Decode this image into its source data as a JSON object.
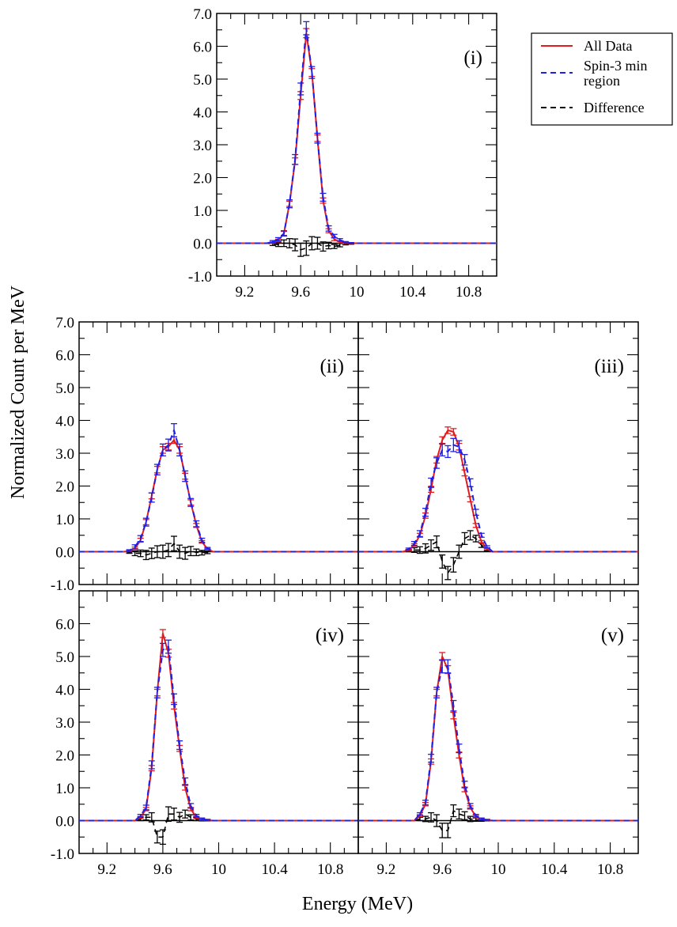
{
  "figure": {
    "xlabel": "Energy (MeV)",
    "ylabel": "Normalized Count per MeV"
  },
  "legend": {
    "placement": "top-right",
    "entries": [
      {
        "label_lines": [
          "All Data"
        ],
        "color": "#e41a1c",
        "dash": "solid"
      },
      {
        "label_lines": [
          "Spin-3 min",
          "region"
        ],
        "color": "#1f1fe6",
        "dash": "dashed"
      },
      {
        "label_lines": [
          "Difference"
        ],
        "color": "#000000",
        "dash": "dashed"
      }
    ]
  },
  "chart_data": [
    {
      "type": "line",
      "panel": "(i)",
      "xlim": [
        9.0,
        11.0
      ],
      "ylim": [
        -1.0,
        7.0
      ],
      "xticks": [
        "9.2",
        "9.6",
        "10",
        "10.4",
        "10.8"
      ],
      "yticks": [
        "-1.0",
        "0.0",
        "1.0",
        "2.0",
        "3.0",
        "4.0",
        "5.0",
        "6.0",
        "7.0"
      ],
      "x": [
        9.4,
        9.44,
        9.48,
        9.52,
        9.56,
        9.6,
        9.64,
        9.68,
        9.72,
        9.76,
        9.8,
        9.84,
        9.88,
        9.92,
        9.96
      ],
      "series": [
        {
          "name": "All Data",
          "values": [
            0.02,
            0.08,
            0.3,
            1.2,
            2.5,
            4.5,
            6.4,
            5.2,
            3.2,
            1.3,
            0.38,
            0.12,
            0.04,
            0.01,
            0.0
          ],
          "errors": [
            0.02,
            0.04,
            0.06,
            0.08,
            0.1,
            0.12,
            0.14,
            0.12,
            0.1,
            0.08,
            0.06,
            0.04,
            0.03,
            0.02,
            0.01
          ]
        },
        {
          "name": "Spin-3 min region",
          "values": [
            0.05,
            0.12,
            0.3,
            1.2,
            2.55,
            4.7,
            6.55,
            5.2,
            3.2,
            1.4,
            0.45,
            0.22,
            0.1,
            0.03,
            0.01
          ],
          "errors": [
            0.03,
            0.05,
            0.08,
            0.12,
            0.15,
            0.18,
            0.2,
            0.18,
            0.15,
            0.12,
            0.08,
            0.05,
            0.04,
            0.02,
            0.01
          ]
        },
        {
          "name": "Difference",
          "values": [
            -0.03,
            -0.04,
            0.0,
            0.0,
            -0.05,
            -0.2,
            -0.15,
            0.0,
            0.0,
            -0.1,
            -0.07,
            -0.1,
            -0.06,
            -0.02,
            -0.01
          ],
          "errors": [
            0.04,
            0.06,
            0.1,
            0.14,
            0.18,
            0.2,
            0.22,
            0.2,
            0.18,
            0.14,
            0.1,
            0.06,
            0.05,
            0.03,
            0.02
          ]
        }
      ]
    },
    {
      "type": "line",
      "panel": "(ii)",
      "xlim": [
        9.0,
        11.0
      ],
      "ylim": [
        -1.0,
        7.0
      ],
      "xticks": [],
      "yticks": [
        "-1.0",
        "0.0",
        "1.0",
        "2.0",
        "3.0",
        "4.0",
        "5.0",
        "6.0",
        "7.0"
      ],
      "x": [
        9.36,
        9.4,
        9.44,
        9.48,
        9.52,
        9.56,
        9.6,
        9.64,
        9.68,
        9.72,
        9.76,
        9.8,
        9.84,
        9.88,
        9.92
      ],
      "series": [
        {
          "name": "All Data",
          "values": [
            0.02,
            0.1,
            0.35,
            0.9,
            1.7,
            2.5,
            3.1,
            3.2,
            3.4,
            3.1,
            2.3,
            1.5,
            0.8,
            0.3,
            0.08
          ],
          "errors": [
            0.02,
            0.04,
            0.06,
            0.08,
            0.09,
            0.1,
            0.1,
            0.1,
            0.1,
            0.1,
            0.09,
            0.08,
            0.06,
            0.04,
            0.02
          ]
        },
        {
          "name": "Spin-3 min region",
          "values": [
            0.03,
            0.15,
            0.4,
            0.9,
            1.65,
            2.5,
            3.1,
            3.25,
            3.7,
            3.1,
            2.3,
            1.5,
            0.85,
            0.35,
            0.1
          ],
          "errors": [
            0.03,
            0.06,
            0.09,
            0.12,
            0.14,
            0.16,
            0.18,
            0.18,
            0.2,
            0.18,
            0.16,
            0.12,
            0.09,
            0.06,
            0.03
          ]
        },
        {
          "name": "Difference",
          "values": [
            -0.02,
            -0.05,
            -0.05,
            -0.1,
            -0.05,
            0.0,
            0.0,
            0.05,
            0.25,
            0.0,
            -0.05,
            0.02,
            -0.02,
            -0.03,
            -0.02
          ],
          "errors": [
            0.03,
            0.07,
            0.1,
            0.14,
            0.16,
            0.18,
            0.2,
            0.2,
            0.22,
            0.2,
            0.18,
            0.14,
            0.1,
            0.07,
            0.04
          ]
        }
      ]
    },
    {
      "type": "line",
      "panel": "(iii)",
      "xlim": [
        9.0,
        11.0
      ],
      "ylim": [
        -1.0,
        7.0
      ],
      "xticks": [],
      "yticks": [],
      "x": [
        9.36,
        9.4,
        9.44,
        9.48,
        9.52,
        9.56,
        9.6,
        9.64,
        9.68,
        9.72,
        9.76,
        9.8,
        9.84,
        9.88,
        9.92
      ],
      "series": [
        {
          "name": "All Data",
          "values": [
            0.05,
            0.2,
            0.5,
            1.1,
            1.9,
            2.8,
            3.4,
            3.7,
            3.65,
            3.2,
            2.4,
            1.6,
            0.8,
            0.3,
            0.08
          ],
          "errors": [
            0.02,
            0.04,
            0.06,
            0.08,
            0.09,
            0.1,
            0.1,
            0.1,
            0.1,
            0.1,
            0.09,
            0.08,
            0.06,
            0.04,
            0.02
          ]
        },
        {
          "name": "Spin-3 min region",
          "values": [
            0.08,
            0.25,
            0.55,
            1.2,
            2.1,
            2.7,
            3.1,
            3.05,
            3.25,
            3.2,
            2.8,
            2.1,
            1.2,
            0.5,
            0.15
          ],
          "errors": [
            0.03,
            0.06,
            0.09,
            0.12,
            0.14,
            0.16,
            0.18,
            0.18,
            0.2,
            0.18,
            0.16,
            0.12,
            0.09,
            0.06,
            0.03
          ]
        },
        {
          "name": "Difference",
          "values": [
            0.03,
            0.05,
            0.05,
            0.1,
            0.2,
            0.3,
            -0.3,
            -0.65,
            -0.4,
            0.0,
            0.4,
            0.5,
            0.4,
            0.2,
            0.07
          ],
          "errors": [
            0.03,
            0.07,
            0.1,
            0.14,
            0.16,
            0.18,
            0.2,
            0.2,
            0.22,
            0.2,
            0.18,
            0.14,
            0.1,
            0.07,
            0.04
          ]
        }
      ]
    },
    {
      "type": "line",
      "panel": "(iv)",
      "xlim": [
        9.0,
        11.0
      ],
      "ylim": [
        -1.0,
        7.0
      ],
      "xticks": [
        "9.2",
        "9.6",
        "10",
        "10.4",
        "10.8"
      ],
      "yticks": [
        "-1.0",
        "0.0",
        "1.0",
        "2.0",
        "3.0",
        "4.0",
        "5.0",
        "6.0"
      ],
      "x": [
        9.44,
        9.48,
        9.52,
        9.56,
        9.6,
        9.64,
        9.68,
        9.72,
        9.76,
        9.8,
        9.84,
        9.88,
        9.92
      ],
      "series": [
        {
          "name": "All Data",
          "values": [
            0.1,
            0.35,
            1.6,
            3.9,
            5.7,
            5.1,
            3.5,
            2.2,
            1.0,
            0.35,
            0.1,
            0.03,
            0.01
          ],
          "errors": [
            0.03,
            0.05,
            0.08,
            0.1,
            0.12,
            0.12,
            0.1,
            0.09,
            0.07,
            0.05,
            0.03,
            0.02,
            0.01
          ]
        },
        {
          "name": "Spin-3 min region",
          "values": [
            0.15,
            0.4,
            1.7,
            3.9,
            5.2,
            5.3,
            3.7,
            2.3,
            1.2,
            0.45,
            0.15,
            0.05,
            0.02
          ],
          "errors": [
            0.04,
            0.07,
            0.12,
            0.16,
            0.2,
            0.2,
            0.16,
            0.13,
            0.1,
            0.07,
            0.04,
            0.03,
            0.02
          ]
        },
        {
          "name": "Difference",
          "values": [
            0.05,
            0.1,
            0.1,
            -0.5,
            -0.5,
            0.2,
            0.2,
            0.1,
            0.2,
            0.1,
            0.05,
            0.02,
            0.01
          ],
          "errors": [
            0.05,
            0.08,
            0.14,
            0.18,
            0.22,
            0.22,
            0.18,
            0.15,
            0.12,
            0.08,
            0.05,
            0.03,
            0.02
          ]
        }
      ]
    },
    {
      "type": "line",
      "panel": "(v)",
      "xlim": [
        9.0,
        11.0
      ],
      "ylim": [
        -1.0,
        7.0
      ],
      "xticks": [
        "9.2",
        "9.6",
        "10",
        "10.4",
        "10.8"
      ],
      "yticks": [],
      "x": [
        9.44,
        9.48,
        9.52,
        9.56,
        9.6,
        9.64,
        9.68,
        9.72,
        9.76,
        9.8,
        9.84,
        9.88,
        9.92
      ],
      "series": [
        {
          "name": "All Data",
          "values": [
            0.15,
            0.5,
            1.8,
            3.9,
            5.0,
            4.6,
            3.2,
            2.0,
            0.95,
            0.4,
            0.12,
            0.04,
            0.01
          ],
          "errors": [
            0.03,
            0.05,
            0.08,
            0.1,
            0.12,
            0.12,
            0.1,
            0.09,
            0.07,
            0.05,
            0.03,
            0.02,
            0.01
          ]
        },
        {
          "name": "Spin-3 min region",
          "values": [
            0.2,
            0.55,
            1.9,
            3.9,
            4.7,
            4.7,
            3.5,
            2.2,
            1.1,
            0.45,
            0.15,
            0.05,
            0.02
          ],
          "errors": [
            0.04,
            0.07,
            0.12,
            0.16,
            0.2,
            0.2,
            0.16,
            0.13,
            0.1,
            0.07,
            0.04,
            0.03,
            0.02
          ]
        },
        {
          "name": "Difference",
          "values": [
            0.05,
            0.05,
            0.1,
            0.0,
            -0.3,
            -0.3,
            0.3,
            0.2,
            0.15,
            0.05,
            0.03,
            0.01,
            0.01
          ],
          "errors": [
            0.05,
            0.08,
            0.14,
            0.18,
            0.22,
            0.22,
            0.18,
            0.15,
            0.12,
            0.08,
            0.05,
            0.03,
            0.02
          ]
        }
      ]
    }
  ]
}
